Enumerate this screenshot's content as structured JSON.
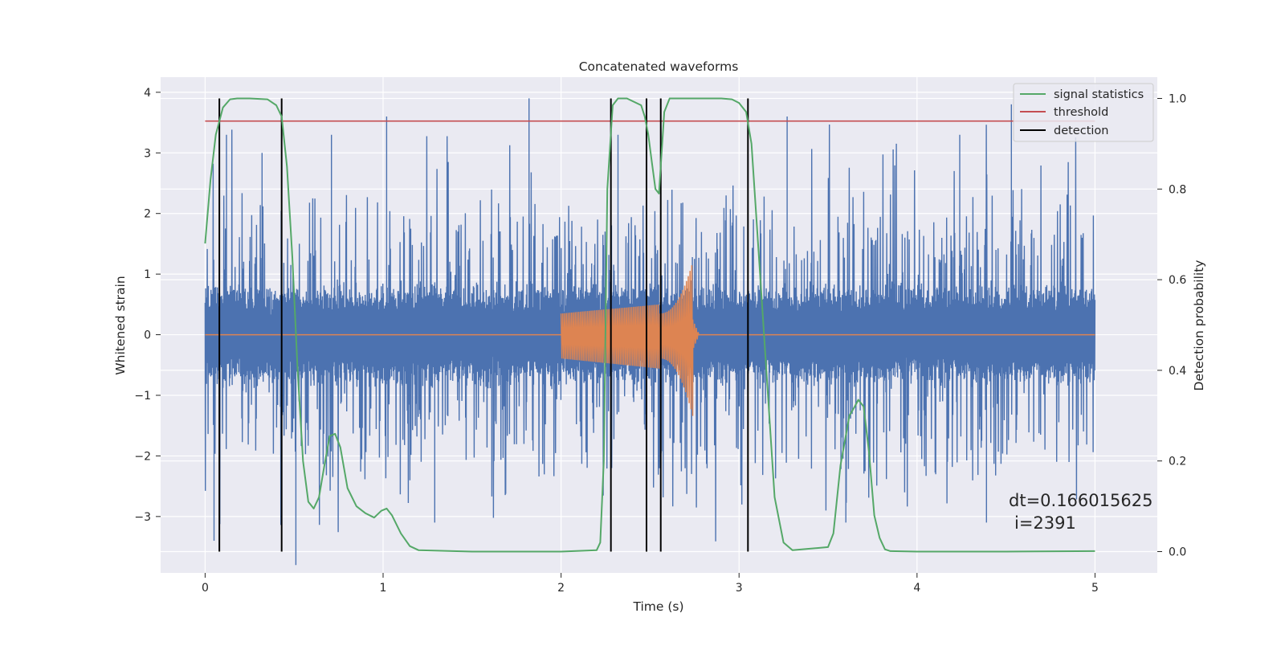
{
  "chart_data": {
    "type": "line",
    "title": "Concatenated waveforms",
    "xlabel": "Time (s)",
    "ylabel": "Whitened strain",
    "y2label": "Detection probability",
    "xlim": [
      -0.25,
      5.35
    ],
    "ylim": [
      -3.93,
      4.25
    ],
    "y2lim": [
      -0.047,
      1.047
    ],
    "xticks": [
      0,
      1,
      2,
      3,
      4,
      5
    ],
    "yticks": [
      -3,
      -2,
      -1,
      0,
      1,
      2,
      3,
      4
    ],
    "y2ticks": [
      0.0,
      0.2,
      0.4,
      0.6,
      0.8,
      1.0
    ],
    "xtick_labels": [
      "0",
      "1",
      "2",
      "3",
      "4",
      "5"
    ],
    "ytick_labels": [
      "−3",
      "−2",
      "−1",
      "0",
      "1",
      "2",
      "3",
      "4"
    ],
    "y2tick_labels": [
      "0.0",
      "0.2",
      "0.4",
      "0.6",
      "0.8",
      "1.0"
    ],
    "grid": true,
    "legend_position": "top-right",
    "legend": [
      "signal statistics",
      "threshold",
      "detection"
    ],
    "series": [
      {
        "name": "",
        "axis": "left",
        "color": "#4c72b0",
        "description_range": [
          -2.2,
          2.2
        ],
        "x_range": [
          0,
          5
        ],
        "peaks": [
          [
            0.12,
            3.3
          ],
          [
            0.32,
            3.0
          ],
          [
            0.71,
            3.3
          ],
          [
            1.02,
            3.6
          ],
          [
            1.82,
            3.9
          ],
          [
            2.32,
            3.3
          ],
          [
            3.27,
            3.6
          ],
          [
            4.24,
            3.3
          ],
          [
            4.53,
            3.8
          ],
          [
            0.05,
            -3.4
          ],
          [
            0.51,
            -3.8
          ],
          [
            1.29,
            -3.1
          ],
          [
            3.6,
            -3.1
          ],
          [
            4.39,
            -3.1
          ]
        ]
      },
      {
        "name": "",
        "axis": "left",
        "color": "#dd8452",
        "x_range": [
          0,
          5
        ],
        "chirp_start": 2.0,
        "chirp_merger": 2.74,
        "amplitude_start": 0.35,
        "amplitude_peak": [
          1.2,
          -1.45
        ]
      },
      {
        "name": "signal statistics",
        "axis": "right",
        "color": "#55a868",
        "x": [
          0.0,
          0.03,
          0.06,
          0.1,
          0.14,
          0.18,
          0.25,
          0.35,
          0.4,
          0.43,
          0.46,
          0.49,
          0.52,
          0.55,
          0.58,
          0.61,
          0.64,
          0.67,
          0.7,
          0.73,
          0.76,
          0.8,
          0.85,
          0.9,
          0.95,
          0.99,
          1.02,
          1.05,
          1.1,
          1.15,
          1.2,
          1.5,
          2.0,
          2.2,
          2.22,
          2.24,
          2.26,
          2.29,
          2.32,
          2.37,
          2.45,
          2.47,
          2.49,
          2.51,
          2.53,
          2.55,
          2.58,
          2.61,
          2.66,
          2.9,
          2.96,
          3.0,
          3.04,
          3.07,
          3.1,
          3.15,
          3.2,
          3.25,
          3.3,
          3.5,
          3.53,
          3.57,
          3.62,
          3.65,
          3.67,
          3.7,
          3.73,
          3.76,
          3.79,
          3.82,
          3.85,
          4.0,
          4.5,
          5.0
        ],
        "y": [
          0.68,
          0.82,
          0.92,
          0.98,
          0.998,
          1.0,
          1.0,
          0.998,
          0.985,
          0.96,
          0.85,
          0.65,
          0.4,
          0.2,
          0.11,
          0.095,
          0.12,
          0.19,
          0.255,
          0.26,
          0.23,
          0.14,
          0.1,
          0.085,
          0.075,
          0.09,
          0.095,
          0.08,
          0.04,
          0.012,
          0.003,
          0.0,
          0.0,
          0.003,
          0.02,
          0.2,
          0.8,
          0.985,
          1.0,
          1.0,
          0.985,
          0.96,
          0.92,
          0.86,
          0.8,
          0.79,
          0.97,
          1.0,
          1.0,
          1.0,
          0.998,
          0.99,
          0.97,
          0.9,
          0.72,
          0.42,
          0.12,
          0.02,
          0.003,
          0.01,
          0.04,
          0.19,
          0.3,
          0.32,
          0.335,
          0.32,
          0.22,
          0.08,
          0.03,
          0.005,
          0.001,
          0.0,
          0.0,
          0.001
        ]
      },
      {
        "name": "threshold",
        "axis": "right",
        "color": "#c44e52",
        "x": [
          0,
          5
        ],
        "y": [
          0.95,
          0.95
        ]
      },
      {
        "name": "detection",
        "axis": "right",
        "color": "#000000",
        "type": "vlines",
        "x": [
          0.08,
          0.43,
          2.28,
          2.48,
          2.56,
          3.05
        ],
        "ymin": 0.0,
        "ymax": 1.0
      }
    ],
    "annotation": [
      "dt=0.166015625",
      "i=2391"
    ]
  }
}
